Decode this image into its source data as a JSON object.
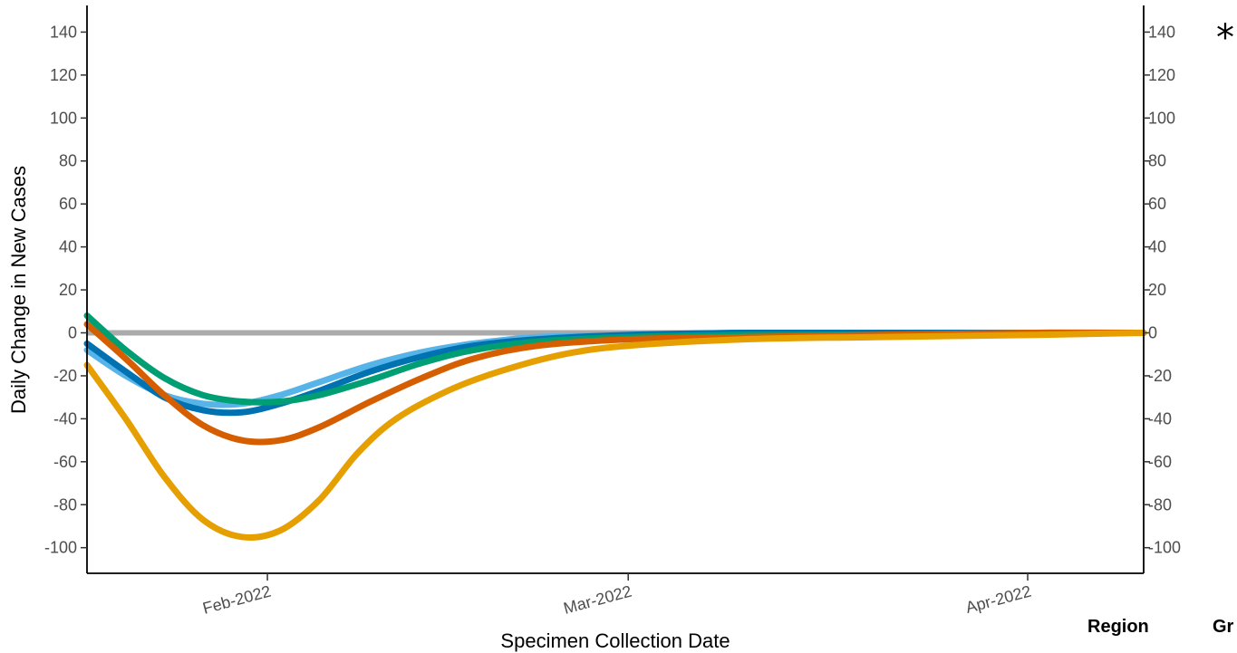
{
  "chart_data": {
    "type": "line",
    "title": "",
    "xlabel": "Specimen Collection Date",
    "ylabel": "Daily Change in New Cases",
    "x_ticks": [
      {
        "date": "2022-02-01",
        "label": "Feb-2022"
      },
      {
        "date": "2022-03-01",
        "label": "Mar-2022"
      },
      {
        "date": "2022-04-01",
        "label": "Apr-2022"
      }
    ],
    "xlim": [
      "2022-01-18",
      "2022-04-10"
    ],
    "ylim": [
      -110,
      150
    ],
    "y_ticks": [
      -100,
      -80,
      -60,
      -40,
      -20,
      0,
      20,
      40,
      60,
      80,
      100,
      120,
      140
    ],
    "secondary_y_axis": true,
    "grid": false,
    "reference_line": {
      "y": 0,
      "color": "#aaaaaa"
    },
    "series": [
      {
        "color": "#56b4e9",
        "points": [
          [
            "2022-01-18",
            -8
          ],
          [
            "2022-01-21",
            -20
          ],
          [
            "2022-01-24",
            -29
          ],
          [
            "2022-01-27",
            -33
          ],
          [
            "2022-01-30",
            -33
          ],
          [
            "2022-02-02",
            -29
          ],
          [
            "2022-02-05",
            -23
          ],
          [
            "2022-02-09",
            -15
          ],
          [
            "2022-02-13",
            -9
          ],
          [
            "2022-02-17",
            -5
          ],
          [
            "2022-02-22",
            -2
          ],
          [
            "2022-03-01",
            -1
          ],
          [
            "2022-03-10",
            0
          ],
          [
            "2022-03-20",
            0
          ],
          [
            "2022-04-01",
            0
          ],
          [
            "2022-04-10",
            0
          ]
        ]
      },
      {
        "color": "#0072b2",
        "points": [
          [
            "2022-01-18",
            -5
          ],
          [
            "2022-01-21",
            -18
          ],
          [
            "2022-01-24",
            -30
          ],
          [
            "2022-01-27",
            -36
          ],
          [
            "2022-01-30",
            -37
          ],
          [
            "2022-02-02",
            -33
          ],
          [
            "2022-02-05",
            -27
          ],
          [
            "2022-02-09",
            -18
          ],
          [
            "2022-02-13",
            -11
          ],
          [
            "2022-02-17",
            -6
          ],
          [
            "2022-02-22",
            -3
          ],
          [
            "2022-03-01",
            -1
          ],
          [
            "2022-03-10",
            0
          ],
          [
            "2022-03-20",
            0
          ],
          [
            "2022-04-01",
            0
          ],
          [
            "2022-04-10",
            0
          ]
        ]
      },
      {
        "color": "#009e73",
        "points": [
          [
            "2022-01-18",
            8
          ],
          [
            "2022-01-21",
            -8
          ],
          [
            "2022-01-24",
            -21
          ],
          [
            "2022-01-27",
            -29
          ],
          [
            "2022-01-30",
            -32
          ],
          [
            "2022-02-02",
            -32
          ],
          [
            "2022-02-05",
            -29
          ],
          [
            "2022-02-09",
            -22
          ],
          [
            "2022-02-13",
            -14
          ],
          [
            "2022-02-17",
            -8
          ],
          [
            "2022-02-22",
            -4
          ],
          [
            "2022-03-01",
            -2
          ],
          [
            "2022-03-10",
            -1
          ],
          [
            "2022-03-20",
            -1
          ],
          [
            "2022-04-01",
            0
          ],
          [
            "2022-04-10",
            0
          ]
        ]
      },
      {
        "color": "#d55e00",
        "points": [
          [
            "2022-01-18",
            4
          ],
          [
            "2022-01-21",
            -12
          ],
          [
            "2022-01-24",
            -29
          ],
          [
            "2022-01-27",
            -43
          ],
          [
            "2022-01-30",
            -50
          ],
          [
            "2022-02-02",
            -50
          ],
          [
            "2022-02-05",
            -44
          ],
          [
            "2022-02-09",
            -32
          ],
          [
            "2022-02-13",
            -21
          ],
          [
            "2022-02-17",
            -12
          ],
          [
            "2022-02-22",
            -6
          ],
          [
            "2022-03-01",
            -3
          ],
          [
            "2022-03-10",
            -2
          ],
          [
            "2022-03-20",
            -1
          ],
          [
            "2022-04-01",
            0
          ],
          [
            "2022-04-10",
            0
          ]
        ]
      },
      {
        "color": "#e69f00",
        "points": [
          [
            "2022-01-18",
            -15
          ],
          [
            "2022-01-21",
            -40
          ],
          [
            "2022-01-24",
            -67
          ],
          [
            "2022-01-27",
            -87
          ],
          [
            "2022-01-30",
            -95
          ],
          [
            "2022-02-02",
            -92
          ],
          [
            "2022-02-05",
            -78
          ],
          [
            "2022-02-08",
            -56
          ],
          [
            "2022-02-11",
            -40
          ],
          [
            "2022-02-15",
            -27
          ],
          [
            "2022-02-19",
            -18
          ],
          [
            "2022-02-24",
            -10
          ],
          [
            "2022-03-01",
            -6
          ],
          [
            "2022-03-10",
            -3
          ],
          [
            "2022-03-20",
            -2
          ],
          [
            "2022-04-01",
            -1
          ],
          [
            "2022-04-10",
            0
          ]
        ]
      }
    ]
  },
  "annotations": {
    "corner_mark": "*",
    "region_label": "Region",
    "cut_label": "Gr"
  }
}
